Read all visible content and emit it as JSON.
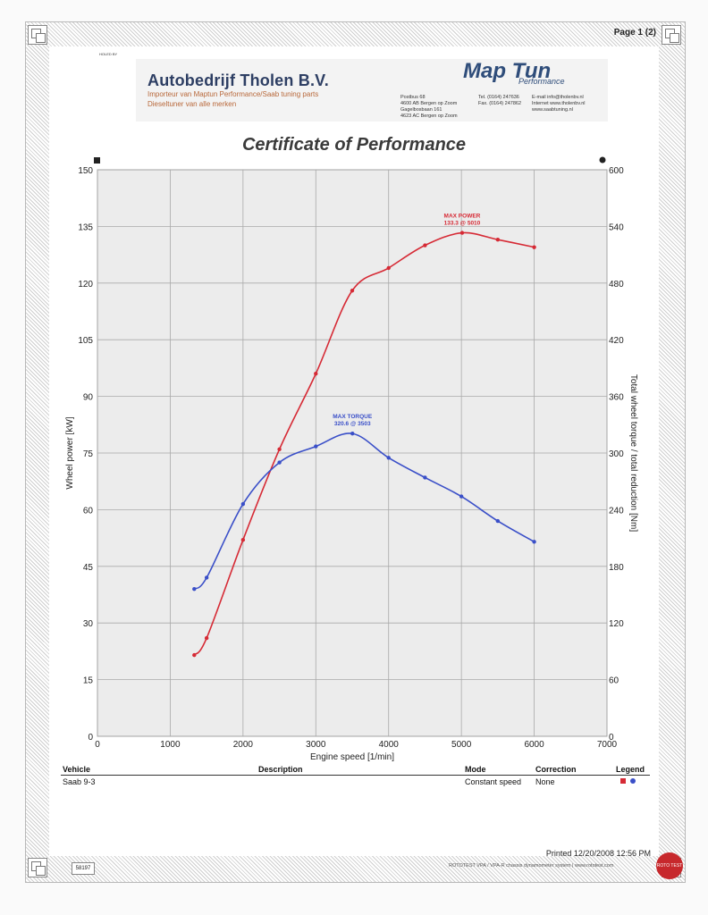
{
  "page_label": "Page 1 (2)",
  "header": {
    "small_label": "HOLED BY",
    "company": "Autobedrijf Tholen B.V.",
    "tagline1": "Importeur van Maptun Performance/Saab tuning parts",
    "tagline2": "Dieseltuner van alle merken",
    "address": "Postbus 68\n4600 AB Bergen op Zoom\nGagelbosbaan 161\n4623 AC Bergen op Zoom",
    "phone": "Tel. (0164) 247636\nFax. (0164) 247862",
    "web": "E-mail   info@tholenbv.nl\nInternet  www.tholenbv.nl\n              www.saabtuning.nl",
    "brand": "Map Tun",
    "brand_sub": "Performance"
  },
  "title": "Certificate of Performance",
  "footer": {
    "vehicle_label": "Vehicle",
    "description_label": "Description",
    "mode_label": "Mode",
    "correction_label": "Correction",
    "legend_label": "Legend",
    "vehicle": "Saab 9-3",
    "mode": "Constant speed",
    "correction": "None",
    "printed": "Printed 12/20/2008 12:56 PM",
    "id": "58197",
    "rototest": "ROTOTEST VPA / VPA-R chassis dynamometer system | www.rototest.com",
    "seal": "ROTO TEST"
  },
  "colors": {
    "power": "#d62a35",
    "torque": "#3a4fc8",
    "plot_bg": "#ececec",
    "grid": "#a9a9a9"
  },
  "chart_data": {
    "type": "line",
    "xlabel": "Engine speed [1/min]",
    "ylabel": "Wheel power [kW]",
    "y2label": "Total wheel torque / total reduction [Nm]",
    "xlim": [
      0,
      7000
    ],
    "ylim": [
      0,
      150
    ],
    "y2lim": [
      0,
      600
    ],
    "x_ticks": [
      0,
      1000,
      2000,
      3000,
      4000,
      5000,
      6000,
      7000
    ],
    "y_ticks": [
      0,
      15,
      30,
      45,
      60,
      75,
      90,
      105,
      120,
      135,
      150
    ],
    "y2_ticks": [
      0,
      60,
      120,
      180,
      240,
      300,
      360,
      420,
      480,
      540,
      600
    ],
    "grid": true,
    "series": [
      {
        "axis": "left",
        "x": [
          1330,
          1500,
          2000,
          2500,
          3000,
          3500,
          4000,
          4500,
          5010,
          5500,
          6000
        ],
        "y": [
          21.5,
          26,
          52,
          76,
          96,
          118,
          124,
          130,
          133.3,
          131.5,
          129.5
        ]
      },
      {
        "axis": "right",
        "x": [
          1330,
          1500,
          2000,
          2500,
          3000,
          3503,
          4000,
          4500,
          5000,
          5500,
          6000
        ],
        "y": [
          156,
          168,
          246,
          290,
          307,
          320.6,
          295,
          274,
          254,
          228,
          206
        ]
      }
    ],
    "annotations": [
      {
        "series": 0,
        "line1": "MAX POWER",
        "line2": "133.3 @ 5010",
        "x": 5010,
        "y": 133.3
      },
      {
        "series": 1,
        "line1": "MAX TORQUE",
        "line2": "320.6 @ 3503",
        "x": 3503,
        "y": 320.6
      }
    ]
  }
}
